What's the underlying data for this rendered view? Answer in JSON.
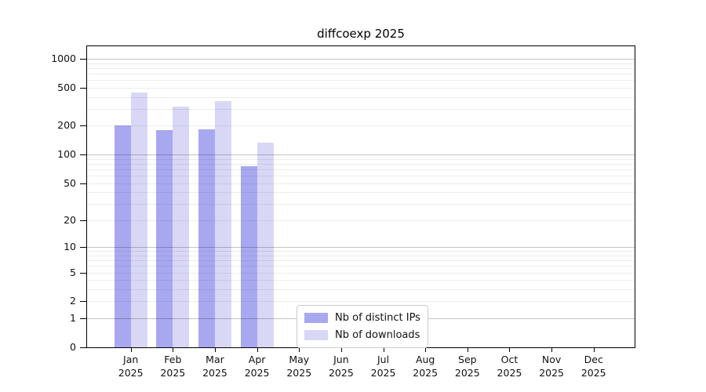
{
  "chart_data": {
    "type": "bar",
    "title": "diffcoexp 2025",
    "xlabel": "",
    "ylabel": "",
    "scale": "log1p",
    "grid": true,
    "legend_position": "lower center",
    "ylim": [
      0,
      1350
    ],
    "categories": [
      "Jan\n2025",
      "Feb\n2025",
      "Mar\n2025",
      "Apr\n2025",
      "May\n2025",
      "Jun\n2025",
      "Jul\n2025",
      "Aug\n2025",
      "Sep\n2025",
      "Oct\n2025",
      "Nov\n2025",
      "Dec\n2025"
    ],
    "series": [
      {
        "name": "Nb of distinct IPs",
        "color": "#a8a8f0",
        "values": [
          200,
          181,
          183,
          75,
          null,
          null,
          null,
          null,
          null,
          null,
          null,
          null
        ]
      },
      {
        "name": "Nb of downloads",
        "color": "#d8d8f6",
        "values": [
          444,
          320,
          361,
          134,
          null,
          null,
          null,
          null,
          null,
          null,
          null,
          null
        ]
      }
    ],
    "y_ticks": [
      1000,
      500,
      200,
      100,
      50,
      20,
      10,
      5,
      2,
      1,
      0
    ],
    "y_major_gridlines": [
      1,
      10,
      100,
      1000
    ],
    "y_minor_gridlines": [
      2,
      3,
      4,
      5,
      6,
      7,
      8,
      9,
      20,
      30,
      40,
      50,
      60,
      70,
      80,
      90,
      200,
      300,
      400,
      500,
      600,
      700,
      800,
      900
    ]
  },
  "colors": {
    "grid_minor": "rgba(0,0,0,0.075)",
    "grid_major": "rgba(0,0,0,0.235)",
    "axis": "#000000",
    "text": "#111111",
    "background": "#ffffff",
    "legend_border": "#cccccc"
  }
}
